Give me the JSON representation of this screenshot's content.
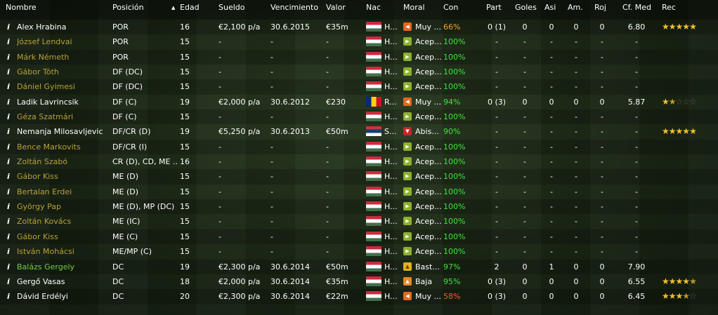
{
  "headers": {
    "name": "Nombre",
    "position": "Posición",
    "age": "Edad",
    "wage": "Sueldo",
    "expires": "Vencimiento",
    "value": "Valor",
    "nat": "Nac",
    "morale": "Moral",
    "con": "Con",
    "apps": "Part",
    "goals": "Goles",
    "assists": "Asi",
    "yellow": "Am.",
    "red": "Roj",
    "rating": "Cf. Med",
    "rec": "Rec"
  },
  "players": [
    {
      "info": "i",
      "name": "Alex Hrabina",
      "name_style": "white",
      "position": "POR",
      "age": "16",
      "wage": "€2,100 p/a",
      "expires": "30.6.2015",
      "value": "€35m",
      "flag": "hu",
      "nat": "H...",
      "morale_icon": "m-orange",
      "morale_glyph": "◀",
      "morale": "Muy ...",
      "con": "66%",
      "con_style": "orange",
      "apps": "0 (1)",
      "goals": "0",
      "assists": "0",
      "yellow": "0",
      "red": "0",
      "rating": "6.80",
      "stars": 5
    },
    {
      "info": "i",
      "name": "József Lendvai",
      "name_style": "gold",
      "position": "POR",
      "age": "15",
      "wage": "-",
      "expires": "-",
      "value": "-",
      "flag": "hu",
      "nat": "H...",
      "morale_icon": "m-green",
      "morale_glyph": "▶",
      "morale": "Acep...",
      "con": "100%",
      "con_style": "green",
      "apps": "-",
      "goals": "-",
      "assists": "-",
      "yellow": "-",
      "red": "-",
      "rating": "-",
      "stars": 0
    },
    {
      "info": "i",
      "name": "Márk Németh",
      "name_style": "gold",
      "position": "POR",
      "age": "15",
      "wage": "-",
      "expires": "-",
      "value": "-",
      "flag": "hu",
      "nat": "H...",
      "morale_icon": "m-green",
      "morale_glyph": "▶",
      "morale": "Acep...",
      "con": "100%",
      "con_style": "green",
      "apps": "-",
      "goals": "-",
      "assists": "-",
      "yellow": "-",
      "red": "-",
      "rating": "-",
      "stars": 0
    },
    {
      "info": "i",
      "name": "Gábor Tóth",
      "name_style": "gold",
      "position": "DF (DC)",
      "age": "15",
      "wage": "-",
      "expires": "-",
      "value": "-",
      "flag": "hu",
      "nat": "H...",
      "morale_icon": "m-green",
      "morale_glyph": "▶",
      "morale": "Acep...",
      "con": "100%",
      "con_style": "green",
      "apps": "-",
      "goals": "-",
      "assists": "-",
      "yellow": "-",
      "red": "-",
      "rating": "-",
      "stars": 0
    },
    {
      "info": "i",
      "name": "Dániel Gyimesi",
      "name_style": "gold",
      "position": "DF (DC)",
      "age": "15",
      "wage": "-",
      "expires": "-",
      "value": "-",
      "flag": "hu",
      "nat": "H...",
      "morale_icon": "m-green",
      "morale_glyph": "▶",
      "morale": "Acep...",
      "con": "100%",
      "con_style": "green",
      "apps": "-",
      "goals": "-",
      "assists": "-",
      "yellow": "-",
      "red": "-",
      "rating": "-",
      "stars": 0
    },
    {
      "info": "i",
      "name": "Ladik Lavrincsik",
      "name_style": "white",
      "position": "DF (C)",
      "age": "19",
      "wage": "€2,000 p/a",
      "expires": "30.6.2012",
      "value": "€230",
      "flag": "ro",
      "nat": "R...",
      "morale_icon": "m-orange",
      "morale_glyph": "◀",
      "morale": "Muy ...",
      "con": "94%",
      "con_style": "green",
      "apps": "0 (3)",
      "goals": "0",
      "assists": "0",
      "yellow": "0",
      "red": "0",
      "rating": "5.87",
      "stars": 1.5
    },
    {
      "info": "i",
      "name": "Géza Szatmári",
      "name_style": "gold",
      "position": "DF (C)",
      "age": "15",
      "wage": "-",
      "expires": "-",
      "value": "-",
      "flag": "hu",
      "nat": "H...",
      "morale_icon": "m-green",
      "morale_glyph": "▶",
      "morale": "Acep...",
      "con": "100%",
      "con_style": "green",
      "apps": "-",
      "goals": "-",
      "assists": "-",
      "yellow": "-",
      "red": "-",
      "rating": "-",
      "stars": 0
    },
    {
      "info": "i",
      "name": "Nemanja Milosavljevic",
      "name_style": "white",
      "position": "DF/CR (D)",
      "age": "19",
      "wage": "€5,250 p/a",
      "expires": "30.6.2013",
      "value": "€50m",
      "flag": "rs",
      "nat": "S...",
      "morale_icon": "m-red",
      "morale_glyph": "▼",
      "morale": "Abis...",
      "con": "90%",
      "con_style": "green",
      "apps": "-",
      "goals": "-",
      "assists": "-",
      "yellow": "-",
      "red": "-",
      "rating": "-",
      "stars": 5
    },
    {
      "info": "i",
      "name": "Bence Markovits",
      "name_style": "gold",
      "position": "DF/CR (I)",
      "age": "15",
      "wage": "-",
      "expires": "-",
      "value": "-",
      "flag": "hu",
      "nat": "H...",
      "morale_icon": "m-green",
      "morale_glyph": "▶",
      "morale": "Acep...",
      "con": "100%",
      "con_style": "green",
      "apps": "-",
      "goals": "-",
      "assists": "-",
      "yellow": "-",
      "red": "-",
      "rating": "-",
      "stars": 0
    },
    {
      "info": "i",
      "name": "Zoltán Szabó",
      "name_style": "gold",
      "position": "CR (D), CD, ME ...",
      "age": "16",
      "wage": "-",
      "expires": "-",
      "value": "-",
      "flag": "hu",
      "nat": "H...",
      "morale_icon": "m-green",
      "morale_glyph": "▶",
      "morale": "Acep...",
      "con": "100%",
      "con_style": "green",
      "apps": "-",
      "goals": "-",
      "assists": "-",
      "yellow": "-",
      "red": "-",
      "rating": "-",
      "stars": 0
    },
    {
      "info": "i",
      "name": "Gábor Kiss",
      "name_style": "gold",
      "position": "ME (D)",
      "age": "15",
      "wage": "-",
      "expires": "-",
      "value": "-",
      "flag": "hu",
      "nat": "H...",
      "morale_icon": "m-green",
      "morale_glyph": "▶",
      "morale": "Acep...",
      "con": "100%",
      "con_style": "green",
      "apps": "-",
      "goals": "-",
      "assists": "-",
      "yellow": "-",
      "red": "-",
      "rating": "-",
      "stars": 0
    },
    {
      "info": "i",
      "name": "Bertalan Erdei",
      "name_style": "gold",
      "position": "ME (D)",
      "age": "15",
      "wage": "-",
      "expires": "-",
      "value": "-",
      "flag": "hu",
      "nat": "H...",
      "morale_icon": "m-green",
      "morale_glyph": "▶",
      "morale": "Acep...",
      "con": "100%",
      "con_style": "green",
      "apps": "-",
      "goals": "-",
      "assists": "-",
      "yellow": "-",
      "red": "-",
      "rating": "-",
      "stars": 0
    },
    {
      "info": "i",
      "name": "György Pap",
      "name_style": "gold",
      "position": "ME (D), MP (DC)",
      "age": "15",
      "wage": "-",
      "expires": "-",
      "value": "-",
      "flag": "hu",
      "nat": "H...",
      "morale_icon": "m-green",
      "morale_glyph": "▶",
      "morale": "Acep...",
      "con": "100%",
      "con_style": "green",
      "apps": "-",
      "goals": "-",
      "assists": "-",
      "yellow": "-",
      "red": "-",
      "rating": "-",
      "stars": 0
    },
    {
      "info": "i",
      "name": "Zoltán Kovács",
      "name_style": "gold",
      "position": "ME (IC)",
      "age": "15",
      "wage": "-",
      "expires": "-",
      "value": "-",
      "flag": "hu",
      "nat": "H...",
      "morale_icon": "m-green",
      "morale_glyph": "▶",
      "morale": "Acep...",
      "con": "100%",
      "con_style": "green",
      "apps": "-",
      "goals": "-",
      "assists": "-",
      "yellow": "-",
      "red": "-",
      "rating": "-",
      "stars": 0
    },
    {
      "info": "i",
      "name": "Gábor Kiss",
      "name_style": "gold",
      "position": "ME (C)",
      "age": "15",
      "wage": "-",
      "expires": "-",
      "value": "-",
      "flag": "hu",
      "nat": "H...",
      "morale_icon": "m-green",
      "morale_glyph": "▶",
      "morale": "Acep...",
      "con": "100%",
      "con_style": "green",
      "apps": "-",
      "goals": "-",
      "assists": "-",
      "yellow": "-",
      "red": "-",
      "rating": "-",
      "stars": 0
    },
    {
      "info": "i",
      "name": "István Mohácsi",
      "name_style": "gold",
      "position": "ME/MP (C)",
      "age": "15",
      "wage": "-",
      "expires": "-",
      "value": "-",
      "flag": "hu",
      "nat": "H...",
      "morale_icon": "m-green",
      "morale_glyph": "▶",
      "morale": "Acep...",
      "con": "100%",
      "con_style": "green",
      "apps": "-",
      "goals": "-",
      "assists": "-",
      "yellow": "-",
      "red": "-",
      "rating": "-",
      "stars": 0
    },
    {
      "info": "i",
      "name": "Balázs Gergely",
      "name_style": "green",
      "position": "DC",
      "age": "19",
      "wage": "€2,300 p/a",
      "expires": "30.6.2014",
      "value": "€50m",
      "flag": "hu",
      "nat": "H...",
      "morale_icon": "m-yellow",
      "morale_glyph": "▲",
      "morale": "Bast...",
      "con": "97%",
      "con_style": "green",
      "apps": "2",
      "goals": "0",
      "assists": "1",
      "yellow": "0",
      "red": "0",
      "rating": "7.90",
      "stars": 0
    },
    {
      "info": "i",
      "name": "Gergő Vasas",
      "name_style": "white",
      "position": "DC",
      "age": "18",
      "wage": "€2,000 p/a",
      "expires": "30.6.2014",
      "value": "€35m",
      "flag": "hu",
      "nat": "H...",
      "morale_icon": "m-lightorange",
      "morale_glyph": "▲",
      "morale": "Baja",
      "con": "95%",
      "con_style": "green",
      "apps": "0 (3)",
      "goals": "0",
      "assists": "0",
      "yellow": "0",
      "red": "0",
      "rating": "6.55",
      "stars": 4.5
    },
    {
      "info": "i",
      "name": "Dávid Erdélyi",
      "name_style": "white",
      "position": "DC",
      "age": "20",
      "wage": "€2,300 p/a",
      "expires": "30.6.2014",
      "value": "€22m",
      "flag": "hu",
      "nat": "H...",
      "morale_icon": "m-orange",
      "morale_glyph": "◀",
      "morale": "Muy ...",
      "con": "58%",
      "con_style": "red",
      "apps": "0 (3)",
      "goals": "0",
      "assists": "0",
      "yellow": "0",
      "red": "0",
      "rating": "6.45",
      "stars": 3.5
    }
  ]
}
